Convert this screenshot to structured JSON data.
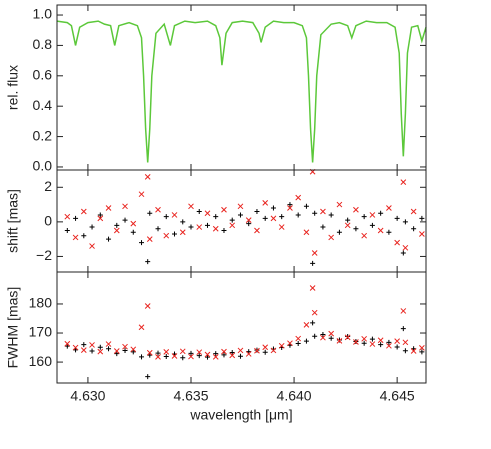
{
  "chart_data": [
    {
      "type": "line",
      "ylabel": "rel. flux",
      "color": "#5cc83a",
      "xlim": [
        4.6285,
        4.6464
      ],
      "ylim": [
        -0.02,
        1.066
      ],
      "yticks": [
        {
          "value": 0,
          "label": "0.0"
        },
        {
          "value": 0.2,
          "label": "0.2"
        },
        {
          "value": 0.4,
          "label": "0.4"
        },
        {
          "value": 0.6,
          "label": "0.6"
        },
        {
          "value": 0.8,
          "label": "0.8"
        },
        {
          "value": 1,
          "label": "1.0"
        }
      ],
      "x": [
        4.6285,
        4.629,
        4.6292,
        4.6294,
        4.6296,
        4.63,
        4.6305,
        4.6308,
        4.6311,
        4.6313,
        4.6315,
        4.632,
        4.6324,
        4.6326,
        4.6327,
        4.6328,
        4.6329,
        4.633,
        4.6331,
        4.6333,
        4.6337,
        4.634,
        4.6342,
        4.6347,
        4.6352,
        4.6358,
        4.6362,
        4.6364,
        4.6365,
        4.6367,
        4.637,
        4.6375,
        4.638,
        4.6383,
        4.6384,
        4.6386,
        4.639,
        4.6395,
        4.64,
        4.6404,
        4.6406,
        4.6407,
        4.6408,
        4.6409,
        4.641,
        4.6411,
        4.6413,
        4.6418,
        4.6422,
        4.6426,
        4.6428,
        4.643,
        4.6435,
        4.644,
        4.6445,
        4.6449,
        4.6451,
        4.6452,
        4.6453,
        4.6454,
        4.6455,
        4.6457,
        4.646,
        4.6462,
        4.6464
      ],
      "values": [
        0.96,
        0.95,
        0.93,
        0.8,
        0.92,
        0.95,
        0.96,
        0.94,
        0.93,
        0.8,
        0.93,
        0.95,
        0.93,
        0.85,
        0.6,
        0.25,
        0.03,
        0.25,
        0.6,
        0.88,
        0.94,
        0.8,
        0.93,
        0.96,
        0.95,
        0.96,
        0.93,
        0.85,
        0.67,
        0.88,
        0.95,
        0.96,
        0.95,
        0.88,
        0.82,
        0.92,
        0.96,
        0.95,
        0.95,
        0.93,
        0.85,
        0.6,
        0.25,
        0.03,
        0.25,
        0.6,
        0.87,
        0.94,
        0.95,
        0.93,
        0.85,
        0.93,
        0.96,
        0.95,
        0.95,
        0.92,
        0.75,
        0.35,
        0.07,
        0.35,
        0.75,
        0.92,
        0.93,
        0.83,
        0.92
      ]
    },
    {
      "type": "scatter",
      "ylabel": "shift [mas]",
      "xlim": [
        4.6285,
        4.6464
      ],
      "ylim": [
        -2.9,
        3.0
      ],
      "yticks": [
        {
          "value": -2,
          "label": "−2"
        },
        0,
        2
      ],
      "x": [
        4.629,
        4.6294,
        4.6298,
        4.6302,
        4.6306,
        4.631,
        4.6314,
        4.6318,
        4.6322,
        4.6326,
        4.6329,
        4.633,
        4.6334,
        4.6338,
        4.6342,
        4.6346,
        4.635,
        4.6354,
        4.6358,
        4.6362,
        4.6366,
        4.637,
        4.6374,
        4.6378,
        4.6382,
        4.6386,
        4.639,
        4.6394,
        4.6398,
        4.6402,
        4.6406,
        4.6409,
        4.641,
        4.6414,
        4.6418,
        4.6422,
        4.6426,
        4.643,
        4.6434,
        4.6438,
        4.6442,
        4.6446,
        4.645,
        4.6453,
        4.6454,
        4.6458,
        4.6462
      ],
      "series": [
        {
          "color": "#000000",
          "marker": "plus",
          "values": [
            -0.5,
            0.2,
            -0.8,
            -0.3,
            0.4,
            -1.0,
            -0.2,
            0.1,
            -0.6,
            -1.2,
            -2.3,
            0.5,
            -0.4,
            0.3,
            -0.7,
            0.0,
            -0.3,
            0.6,
            -0.2,
            0.3,
            -0.5,
            0.1,
            0.4,
            -0.1,
            0.6,
            0.2,
            0.8,
            0.3,
            1.0,
            0.4,
            0.9,
            -2.4,
            0.5,
            -0.3,
            0.4,
            -0.6,
            0.1,
            -0.4,
            0.3,
            -0.2,
            0.5,
            -0.6,
            0.2,
            -1.8,
            0.0,
            -0.4,
            0.2
          ]
        },
        {
          "color": "#e8231e",
          "marker": "cross",
          "values": [
            0.3,
            -0.9,
            0.6,
            -1.4,
            0.2,
            0.8,
            -0.5,
            0.9,
            -0.1,
            1.6,
            2.6,
            -1.0,
            0.7,
            -0.8,
            0.4,
            -0.6,
            0.9,
            -0.3,
            0.5,
            -0.4,
            0.7,
            -0.2,
            0.9,
            0.1,
            -0.5,
            1.1,
            0.2,
            -0.3,
            0.8,
            1.4,
            -0.6,
            2.9,
            -1.8,
            0.6,
            -0.9,
            1.0,
            -0.2,
            0.7,
            -0.8,
            0.4,
            -0.5,
            0.8,
            -1.2,
            2.3,
            -1.5,
            0.6,
            -0.7
          ]
        }
      ]
    },
    {
      "type": "scatter",
      "ylabel": "FWHM [mas]",
      "xlabel": "wavelength [μm]",
      "xlim": [
        4.6285,
        4.6464
      ],
      "ylim": [
        152.8,
        191
      ],
      "xticks": [
        {
          "value": 4.63,
          "label": "4.630"
        },
        {
          "value": 4.635,
          "label": "4.635"
        },
        {
          "value": 4.64,
          "label": "4.640"
        },
        {
          "value": 4.645,
          "label": "4.645"
        }
      ],
      "yticks": [
        160,
        170,
        180
      ],
      "x": [
        4.629,
        4.6294,
        4.6298,
        4.6302,
        4.6306,
        4.631,
        4.6314,
        4.6318,
        4.6322,
        4.6326,
        4.6329,
        4.633,
        4.6334,
        4.6338,
        4.6342,
        4.6346,
        4.635,
        4.6354,
        4.6358,
        4.6362,
        4.6366,
        4.637,
        4.6374,
        4.6378,
        4.6382,
        4.6386,
        4.639,
        4.6394,
        4.6398,
        4.6402,
        4.6406,
        4.6409,
        4.641,
        4.6414,
        4.6418,
        4.6422,
        4.6426,
        4.643,
        4.6434,
        4.6438,
        4.6442,
        4.6446,
        4.645,
        4.6453,
        4.6454,
        4.6458,
        4.6462
      ],
      "series": [
        {
          "color": "#000000",
          "marker": "plus",
          "values": [
            165.5,
            164.2,
            166.0,
            163.8,
            165.1,
            164.6,
            162.9,
            164.0,
            163.5,
            161.8,
            155.0,
            162.4,
            163.1,
            161.9,
            162.8,
            161.5,
            163.0,
            162.2,
            161.7,
            162.9,
            162.5,
            163.3,
            162.0,
            163.6,
            164.1,
            163.4,
            164.5,
            165.0,
            165.8,
            166.4,
            167.2,
            173.5,
            168.9,
            169.5,
            168.2,
            167.6,
            168.8,
            167.1,
            166.5,
            167.9,
            166.0,
            166.8,
            165.2,
            171.5,
            163.9,
            164.6,
            163.5
          ]
        },
        {
          "color": "#e8231e",
          "marker": "cross",
          "values": [
            166.3,
            165.0,
            164.1,
            165.9,
            163.6,
            166.2,
            163.8,
            165.3,
            164.4,
            172.0,
            179.3,
            163.2,
            161.8,
            163.5,
            162.1,
            163.7,
            161.9,
            163.4,
            162.6,
            161.8,
            163.6,
            162.3,
            164.0,
            162.8,
            163.9,
            165.1,
            164.0,
            165.6,
            166.5,
            168.1,
            172.8,
            185.5,
            177.0,
            168.4,
            169.8,
            167.3,
            168.5,
            166.9,
            168.0,
            166.2,
            167.5,
            165.6,
            167.2,
            177.6,
            166.8,
            163.8,
            164.9
          ]
        }
      ]
    }
  ]
}
